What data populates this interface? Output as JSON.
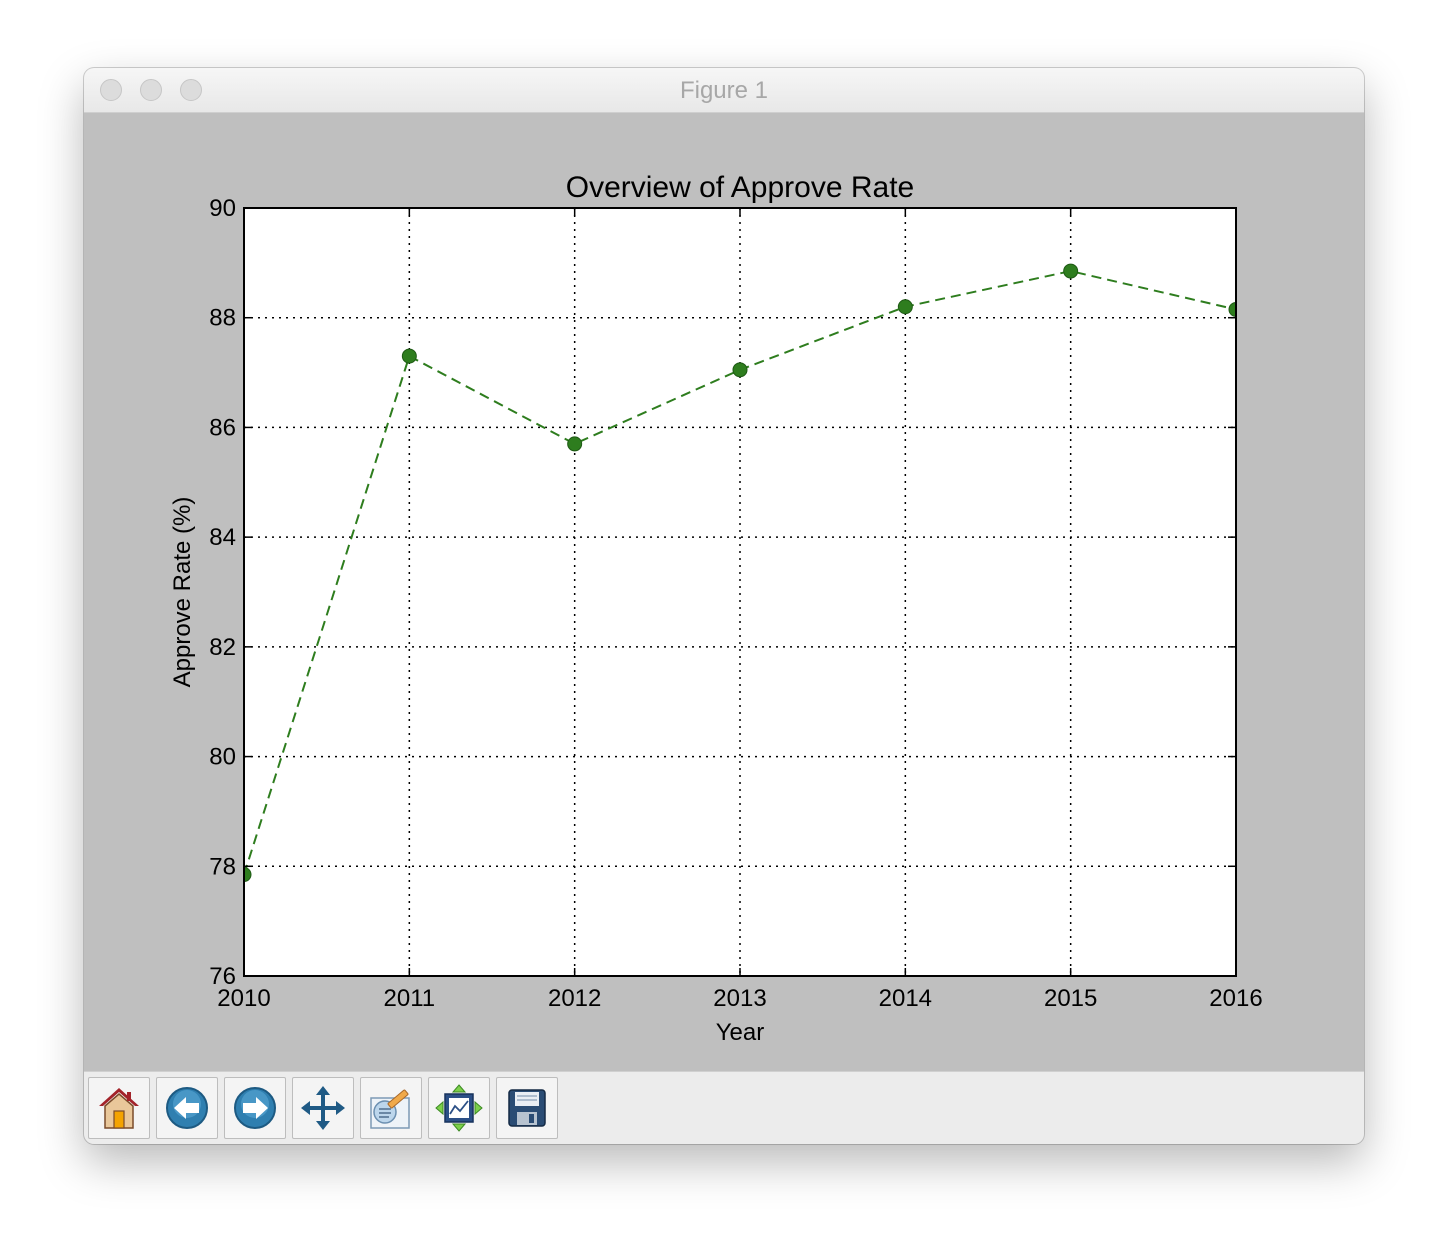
{
  "window": {
    "title": "Figure 1"
  },
  "toolbar": {
    "buttons": [
      {
        "name": "home-button",
        "icon": "home-icon"
      },
      {
        "name": "back-button",
        "icon": "back-arrow-icon"
      },
      {
        "name": "forward-button",
        "icon": "forward-arrow-icon"
      },
      {
        "name": "pan-button",
        "icon": "move-icon"
      },
      {
        "name": "zoom-button",
        "icon": "zoom-rect-icon"
      },
      {
        "name": "subplots-button",
        "icon": "subplots-icon"
      },
      {
        "name": "save-button",
        "icon": "floppy-disk-icon"
      }
    ]
  },
  "chart_data": {
    "type": "line",
    "title": "Overview of Approve Rate",
    "xlabel": "Year",
    "ylabel": "Approve Rate (%)",
    "x": [
      2010,
      2011,
      2012,
      2013,
      2014,
      2015,
      2016
    ],
    "series": [
      {
        "values": [
          77.85,
          87.3,
          85.7,
          87.05,
          88.2,
          88.85,
          88.15
        ]
      }
    ],
    "xlim": [
      2010,
      2016
    ],
    "ylim": [
      76,
      90
    ],
    "xticks": [
      "2010",
      "2011",
      "2012",
      "2013",
      "2014",
      "2015",
      "2016"
    ],
    "yticks": [
      "76",
      "78",
      "80",
      "82",
      "84",
      "86",
      "88",
      "90"
    ],
    "grid": true,
    "line_style": "dashed",
    "marker": "circle",
    "color": "#2e7d1e"
  }
}
